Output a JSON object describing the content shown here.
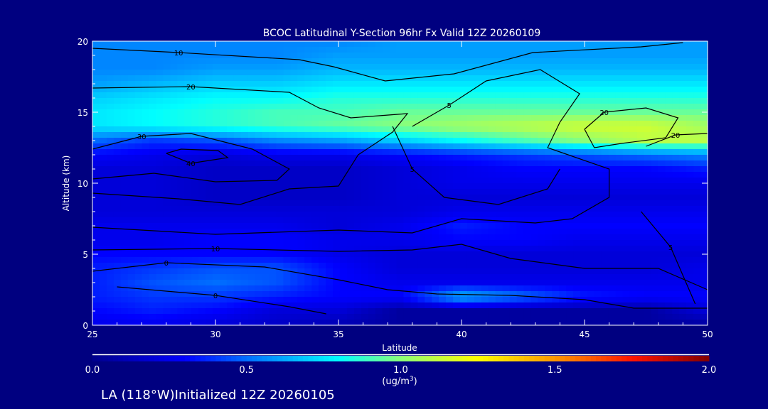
{
  "chart_data": {
    "type": "heatmap",
    "title": "BCOC Latitudinal Y-Section 96hr  Fx Valid 12Z 20260109",
    "xlabel": "Latitude",
    "ylabel": "Altitude (km)",
    "xlim": [
      25,
      50
    ],
    "ylim": [
      0,
      20
    ],
    "xticks": [
      "25",
      "30",
      "35",
      "40",
      "45",
      "50"
    ],
    "yticks": [
      "0",
      "5",
      "10",
      "15",
      "20"
    ],
    "grid_lat": [
      25,
      27.5,
      30,
      32.5,
      35,
      37.5,
      40,
      42.5,
      45,
      47.5,
      50
    ],
    "grid_alt": [
      0,
      1,
      2,
      3,
      4,
      5,
      6,
      7,
      8,
      9,
      10,
      11,
      12,
      13,
      14,
      15,
      16,
      17,
      18,
      19,
      20
    ],
    "values": [
      [
        0.25,
        0.25,
        0.2,
        0.15,
        0.1,
        0.05,
        0.05,
        0.05,
        0.05,
        0.05,
        0.05
      ],
      [
        0.3,
        0.35,
        0.3,
        0.2,
        0.2,
        0.05,
        0.05,
        0.05,
        0.05,
        0.05,
        0.2
      ],
      [
        0.35,
        0.4,
        0.4,
        0.35,
        0.3,
        0.3,
        0.65,
        0.5,
        0.35,
        0.3,
        0.3
      ],
      [
        0.35,
        0.45,
        0.5,
        0.45,
        0.3,
        0.25,
        0.25,
        0.25,
        0.25,
        0.25,
        0.25
      ],
      [
        0.35,
        0.4,
        0.45,
        0.45,
        0.3,
        0.2,
        0.2,
        0.2,
        0.2,
        0.2,
        0.25
      ],
      [
        0.3,
        0.3,
        0.3,
        0.3,
        0.25,
        0.2,
        0.2,
        0.2,
        0.2,
        0.2,
        0.2
      ],
      [
        0.25,
        0.25,
        0.3,
        0.3,
        0.25,
        0.25,
        0.3,
        0.3,
        0.25,
        0.25,
        0.25
      ],
      [
        0.25,
        0.25,
        0.25,
        0.25,
        0.2,
        0.25,
        0.35,
        0.3,
        0.3,
        0.3,
        0.3
      ],
      [
        0.2,
        0.2,
        0.2,
        0.2,
        0.2,
        0.2,
        0.25,
        0.25,
        0.25,
        0.25,
        0.25
      ],
      [
        0.2,
        0.2,
        0.15,
        0.15,
        0.15,
        0.2,
        0.2,
        0.2,
        0.2,
        0.2,
        0.2
      ],
      [
        0.2,
        0.2,
        0.15,
        0.15,
        0.15,
        0.2,
        0.25,
        0.25,
        0.25,
        0.25,
        0.25
      ],
      [
        0.2,
        0.2,
        0.15,
        0.15,
        0.15,
        0.2,
        0.25,
        0.3,
        0.3,
        0.3,
        0.35
      ],
      [
        0.3,
        0.25,
        0.2,
        0.25,
        0.25,
        0.3,
        0.35,
        0.4,
        0.45,
        0.5,
        0.55
      ],
      [
        0.5,
        0.4,
        0.45,
        0.55,
        0.6,
        0.7,
        0.8,
        0.9,
        1.0,
        1.1,
        1.1
      ],
      [
        0.75,
        0.8,
        0.85,
        0.9,
        0.95,
        1.0,
        1.05,
        1.1,
        1.15,
        1.15,
        1.05
      ],
      [
        0.75,
        0.8,
        0.85,
        0.9,
        0.9,
        0.95,
        0.95,
        0.95,
        0.95,
        0.95,
        0.95
      ],
      [
        0.7,
        0.75,
        0.8,
        0.8,
        0.85,
        0.85,
        0.85,
        0.85,
        0.85,
        0.85,
        0.85
      ],
      [
        0.6,
        0.65,
        0.7,
        0.7,
        0.75,
        0.75,
        0.75,
        0.75,
        0.75,
        0.75,
        0.75
      ],
      [
        0.55,
        0.55,
        0.6,
        0.6,
        0.65,
        0.65,
        0.65,
        0.65,
        0.65,
        0.65,
        0.65
      ],
      [
        0.55,
        0.55,
        0.55,
        0.55,
        0.6,
        0.6,
        0.6,
        0.6,
        0.6,
        0.6,
        0.6
      ],
      [
        0.55,
        0.55,
        0.55,
        0.55,
        0.55,
        0.6,
        0.6,
        0.6,
        0.6,
        0.6,
        0.6
      ]
    ],
    "contours": [
      {
        "level": "10",
        "points": [
          [
            25,
            19.5
          ],
          [
            28.5,
            19.2
          ],
          [
            33.4,
            18.7
          ],
          [
            34.8,
            18.2
          ],
          [
            36.9,
            17.2
          ],
          [
            39.7,
            17.7
          ],
          [
            42.9,
            19.2
          ],
          [
            47.3,
            19.6
          ],
          [
            49,
            19.9
          ]
        ]
      },
      {
        "level": "20",
        "points": [
          [
            25,
            16.7
          ],
          [
            29,
            16.8
          ],
          [
            33,
            16.4
          ],
          [
            34.2,
            15.3
          ],
          [
            35.5,
            14.6
          ],
          [
            37.8,
            14.9
          ],
          [
            37.2,
            13.6
          ],
          [
            35.8,
            12
          ],
          [
            35,
            9.8
          ],
          [
            33,
            9.6
          ],
          [
            31,
            8.5
          ],
          [
            28.5,
            8.9
          ],
          [
            25,
            9.3
          ]
        ]
      },
      {
        "level": "5",
        "points": [
          [
            38,
            14
          ],
          [
            39.5,
            15.5
          ],
          [
            41,
            17.2
          ],
          [
            43.2,
            18
          ],
          [
            44.8,
            16.3
          ],
          [
            44,
            14.3
          ],
          [
            43.5,
            12.5
          ],
          [
            46,
            11
          ],
          [
            46,
            9
          ],
          [
            44.5,
            7.5
          ],
          [
            43,
            7.2
          ],
          [
            40,
            7.5
          ],
          [
            38,
            6.5
          ],
          [
            35,
            6.7
          ],
          [
            30,
            6.4
          ],
          [
            25,
            6.9
          ]
        ]
      },
      {
        "level": "20",
        "points": [
          [
            45,
            13.8
          ],
          [
            45.8,
            15
          ],
          [
            47.5,
            15.3
          ],
          [
            48.8,
            14.6
          ],
          [
            48.3,
            13.2
          ],
          [
            46.5,
            12.8
          ],
          [
            45.4,
            12.5
          ],
          [
            45,
            13.8
          ]
        ]
      },
      {
        "level": "20",
        "points": [
          [
            47.5,
            12.6
          ],
          [
            48.7,
            13.4
          ],
          [
            50,
            13.5
          ]
        ]
      },
      {
        "level": "30",
        "points": [
          [
            25,
            12.4
          ],
          [
            27,
            13.3
          ],
          [
            29,
            13.5
          ],
          [
            31.5,
            12.4
          ],
          [
            33,
            11
          ],
          [
            32.5,
            10.2
          ],
          [
            30,
            10.1
          ],
          [
            27.5,
            10.7
          ],
          [
            25,
            10.3
          ]
        ]
      },
      {
        "level": "40",
        "points": [
          [
            28,
            12.1
          ],
          [
            29,
            11.4
          ],
          [
            30.5,
            11.8
          ],
          [
            30.1,
            12.3
          ],
          [
            28.6,
            12.4
          ],
          [
            28,
            12.1
          ]
        ]
      },
      {
        "level": "10",
        "points": [
          [
            25,
            5.3
          ],
          [
            30,
            5.4
          ],
          [
            35,
            5.2
          ],
          [
            38,
            5.3
          ],
          [
            40,
            5.7
          ],
          [
            42,
            4.7
          ],
          [
            45,
            4
          ],
          [
            48,
            4
          ],
          [
            50,
            2.5
          ]
        ]
      },
      {
        "level": "0",
        "points": [
          [
            25,
            3.8
          ],
          [
            28,
            4.4
          ],
          [
            32,
            4.1
          ],
          [
            35,
            3.2
          ],
          [
            37,
            2.5
          ],
          [
            39,
            2.2
          ],
          [
            42,
            2.1
          ],
          [
            45,
            1.8
          ],
          [
            47,
            1.2
          ],
          [
            50,
            1.2
          ]
        ]
      },
      {
        "level": "0",
        "points": [
          [
            26,
            2.7
          ],
          [
            30,
            2.1
          ],
          [
            33,
            1.3
          ],
          [
            34.5,
            0.8
          ]
        ]
      },
      {
        "level": "5",
        "points": [
          [
            37.2,
            14
          ],
          [
            38,
            11
          ],
          [
            39.3,
            9
          ],
          [
            41.5,
            8.5
          ],
          [
            43.5,
            9.6
          ],
          [
            44,
            11
          ]
        ]
      },
      {
        "level": "5",
        "points": [
          [
            47.3,
            8
          ],
          [
            48.5,
            5.5
          ],
          [
            49,
            3.5
          ],
          [
            49.5,
            1.5
          ]
        ]
      }
    ],
    "colorbar": {
      "range": [
        0,
        2
      ],
      "ticks": [
        "0.0",
        "0.5",
        "1.0",
        "1.5",
        "2.0"
      ],
      "units_prefix": "(ug/m",
      "units_sup": "3",
      "units_suffix": ")"
    },
    "footer": "LA (118°W)Initialized 12Z 20260105"
  }
}
